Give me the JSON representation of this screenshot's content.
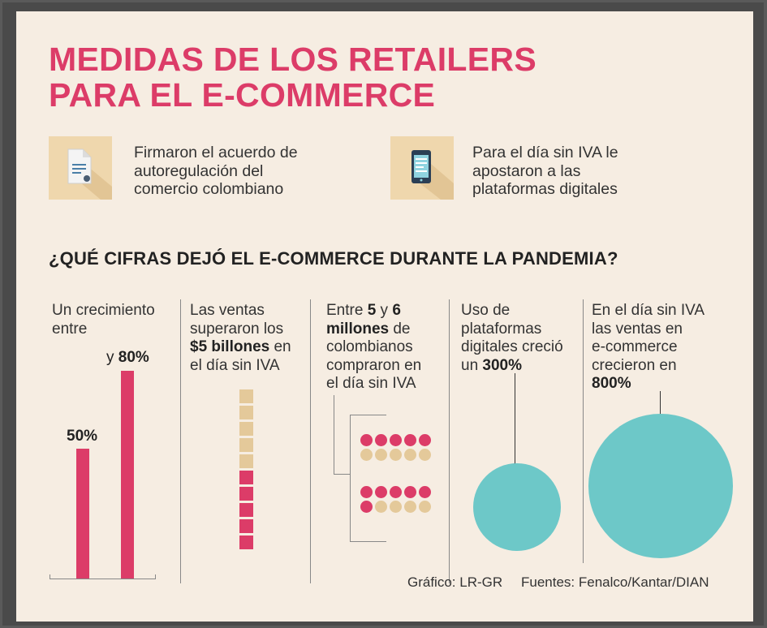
{
  "title_line1": "MEDIDAS DE LOS RETAILERS",
  "title_line2": "PARA EL E-COMMERCE",
  "measures": [
    {
      "icon": "document-icon",
      "lines": [
        "Firmaron el acuerdo de",
        "autoregulación del",
        "comercio colombiano"
      ]
    },
    {
      "icon": "smartphone-icon",
      "lines": [
        "Para el día sin IVA le",
        "apostaron a las",
        "plataformas digitales"
      ]
    }
  ],
  "subtitle": "¿QUÉ CIFRAS DEJÓ EL E-COMMERCE DURANTE LA PANDEMIA?",
  "growth": {
    "text_l1": "Un crecimiento",
    "text_l2": "entre",
    "low_label": "50%",
    "high_prefix": "y ",
    "high_label": "80%",
    "low_value": 50,
    "high_value": 80
  },
  "sales": {
    "l1": "Las ventas",
    "l2": "superaron los",
    "bold": "$5 billones",
    "l3_rest": " en",
    "l4": "el día sin IVA",
    "filled_blocks": 5,
    "total_blocks": 10
  },
  "buyers": {
    "l1_pre": "Entre ",
    "b1": "5",
    "l1_mid": " y ",
    "b2": "6",
    "b3": "millones",
    "l2_rest": " de",
    "l3": "colombianos",
    "l4": "compraron en",
    "l5": "el día sin IVA",
    "group1_pink": 5,
    "group2_pink": 6,
    "dots_per_group": 10
  },
  "platforms": {
    "l1": "Uso de",
    "l2": "plataformas",
    "l3": "digitales creció",
    "l4_pre": "un ",
    "l4_bold": "300%",
    "value": 300
  },
  "sinIVA": {
    "l1": "En el día sin IVA",
    "l2": "las ventas en",
    "l3": "e-commerce",
    "l4": "crecieron en",
    "l5_bold": "800%",
    "value": 800
  },
  "credit_graphic": "Gráfico: LR-GR",
  "credit_sources": "Fuentes: Fenalco/Kantar/DIAN",
  "colors": {
    "accent": "#dc3c68",
    "beige": "#e4c99a",
    "teal": "#6dc8c8",
    "background": "#f6ede2"
  }
}
